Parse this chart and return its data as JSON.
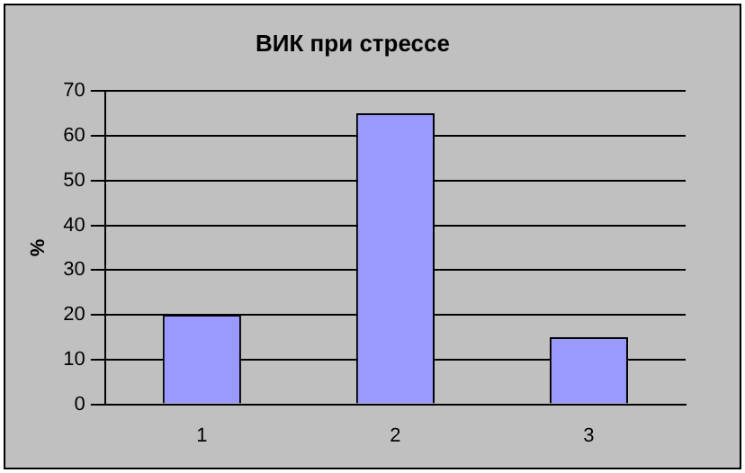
{
  "chart_data": {
    "type": "bar",
    "title": "ВИК при стрессе",
    "ylabel": "%",
    "categories": [
      "1",
      "2",
      "3"
    ],
    "values": [
      20,
      65,
      15
    ],
    "color": "#9999ff",
    "ylim": [
      0,
      70
    ],
    "yticks": [
      0,
      10,
      20,
      30,
      40,
      50,
      60,
      70
    ],
    "grid": "y"
  }
}
